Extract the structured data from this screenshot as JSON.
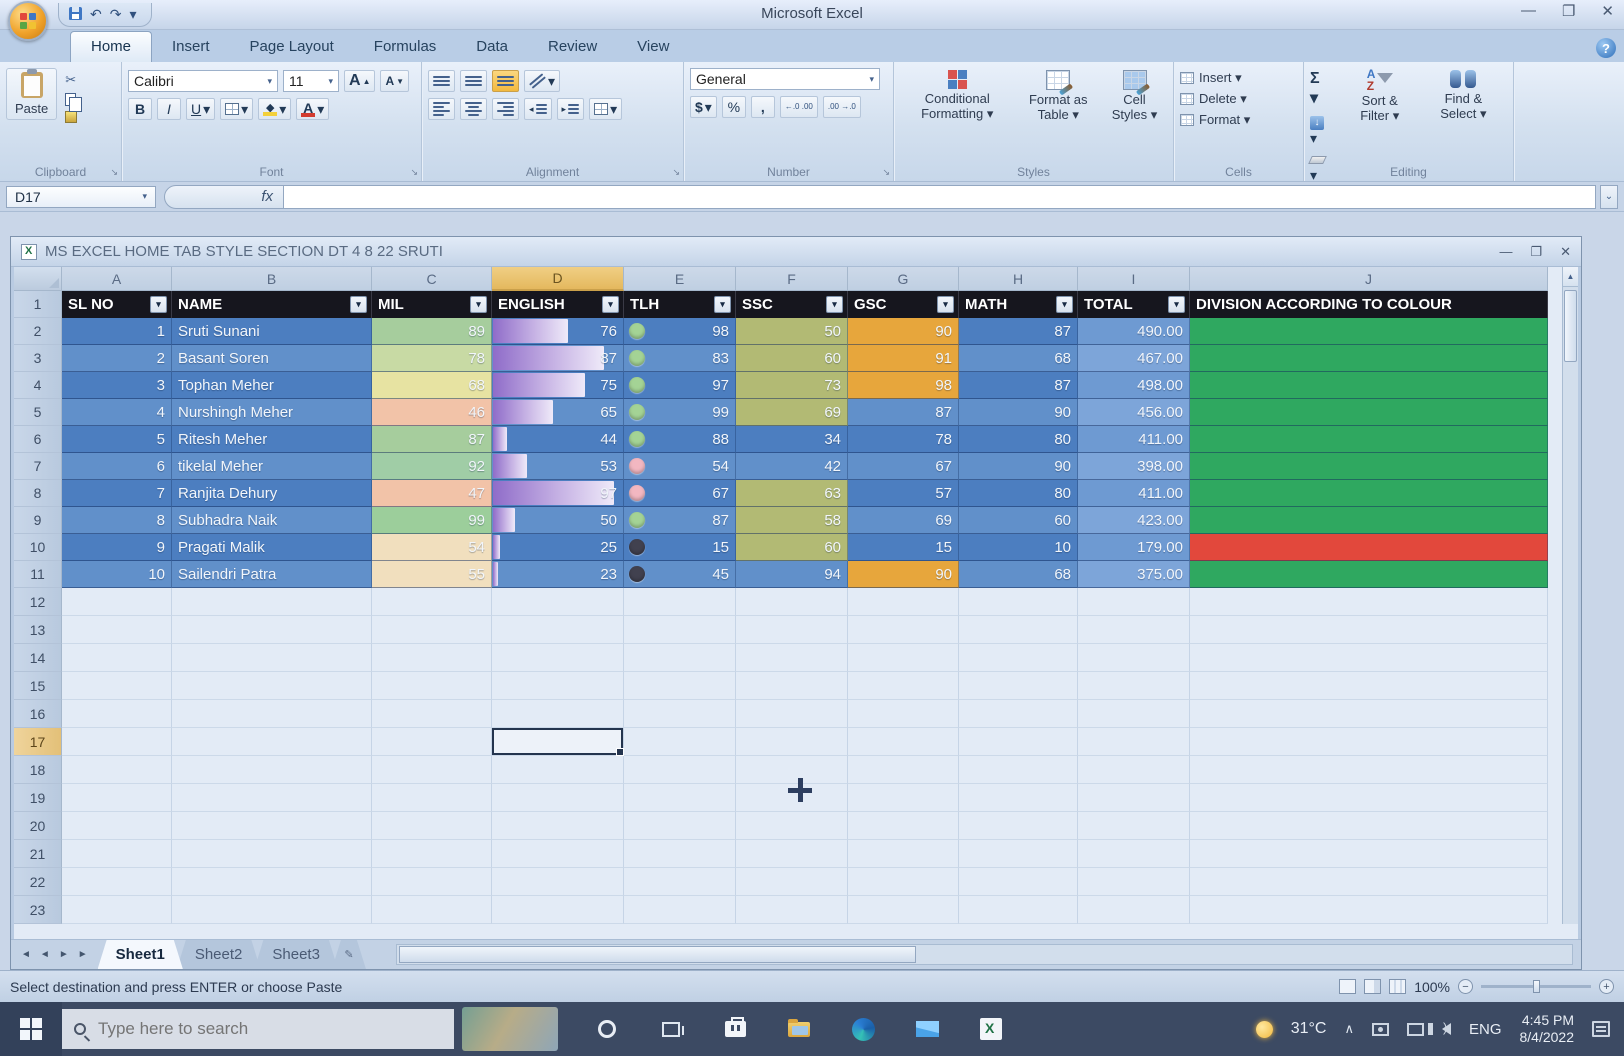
{
  "titlebar": {
    "app_title": "Microsoft Excel",
    "minimize": "—",
    "maximize": "❐",
    "close": "✕",
    "undo": "↶",
    "redo": "↷",
    "qat_more": "▾"
  },
  "ribbon_tabs": [
    {
      "label": "Home",
      "active": true
    },
    {
      "label": "Insert",
      "active": false
    },
    {
      "label": "Page Layout",
      "active": false
    },
    {
      "label": "Formulas",
      "active": false
    },
    {
      "label": "Data",
      "active": false
    },
    {
      "label": "Review",
      "active": false
    },
    {
      "label": "View",
      "active": false
    }
  ],
  "help_label": "?",
  "ribbon": {
    "clipboard": {
      "paste": "Paste",
      "group": "Clipboard",
      "cut_icon": "✂"
    },
    "font": {
      "name": "Calibri",
      "size": "11",
      "grow": "A",
      "shrink": "A",
      "bold": "B",
      "italic": "I",
      "underline": "U",
      "color_a": "A",
      "group": "Font"
    },
    "alignment": {
      "group": "Alignment"
    },
    "number": {
      "format": "General",
      "currency": "$",
      "percent": "%",
      "comma": ",",
      "inc_dec": "←.0 .00",
      "dec_dec": ".00 →.0",
      "group": "Number"
    },
    "styles": {
      "conditional": "Conditional Formatting ▾",
      "as_table": "Format as Table ▾",
      "cell_styles": "Cell Styles ▾",
      "group": "Styles"
    },
    "cells": {
      "insert": "Insert ▾",
      "delete": "Delete ▾",
      "format": "Format ▾",
      "group": "Cells"
    },
    "editing": {
      "autosum": "Σ ▾",
      "fill": "↓",
      "sort_filter": "Sort & Filter ▾",
      "find_select": "Find & Select ▾",
      "group": "Editing"
    }
  },
  "formula_bar": {
    "name_box": "D17",
    "fx_label": "fx",
    "content": ""
  },
  "workbook_title": "MS EXCEL HOME TAB STYLE SECTION DT 4 8 22 SRUTI",
  "grid": {
    "column_letters": [
      "A",
      "B",
      "C",
      "D",
      "E",
      "F",
      "G",
      "H",
      "I",
      "J"
    ],
    "selected_column": "D",
    "selected_cell": "D17",
    "selected_row_number": 17,
    "first_empty_row": 12,
    "last_row_number": 23,
    "headers": [
      "SL NO",
      "NAME",
      "MIL",
      "ENGLISH",
      "TLH",
      "SSC",
      "GSC",
      "MATH",
      "TOTAL",
      "DIVISION ACCORDING TO COLOUR"
    ],
    "filter_glyph": "▾",
    "icon_colors": {
      "green": "#a4d395",
      "pink": "#f2b7c1",
      "dark": "#41414f"
    },
    "rows": [
      {
        "sl": "1",
        "name": "Sruti Sunani",
        "mil": "89",
        "mil_fill": "#a6cd9d",
        "english": "76",
        "english_bar_pct": 57,
        "tlh": "98",
        "tlh_icon": "green",
        "ssc": "50",
        "ssc_fill": "#b2ba74",
        "gsc": "90",
        "gsc_fill": "#e7a63c",
        "math": "87",
        "total": "490.00",
        "division_fill": "#2fa860"
      },
      {
        "sl": "2",
        "name": "Basant Soren",
        "mil": "78",
        "mil_fill": "#c8daa4",
        "english": "87",
        "english_bar_pct": 85,
        "tlh": "83",
        "tlh_icon": "green",
        "ssc": "60",
        "ssc_fill": "#b2ba74",
        "gsc": "91",
        "gsc_fill": "#e7a63c",
        "math": "68",
        "total": "467.00",
        "division_fill": "#2fa860"
      },
      {
        "sl": "3",
        "name": "Tophan Meher",
        "mil": "68",
        "mil_fill": "#e7e3a2",
        "english": "75",
        "english_bar_pct": 70,
        "tlh": "97",
        "tlh_icon": "green",
        "ssc": "73",
        "ssc_fill": "#b2ba74",
        "gsc": "98",
        "gsc_fill": "#e7a63c",
        "math": "87",
        "total": "498.00",
        "division_fill": "#2fa860"
      },
      {
        "sl": "4",
        "name": "Nurshingh Meher",
        "mil": "46",
        "mil_fill": "#f2c3a8",
        "english": "65",
        "english_bar_pct": 46,
        "tlh": "99",
        "tlh_icon": "green",
        "ssc": "69",
        "ssc_fill": "#b2ba74",
        "gsc": "87",
        "gsc_fill": null,
        "math": "90",
        "total": "456.00",
        "division_fill": "#2fa860"
      },
      {
        "sl": "5",
        "name": "Ritesh Meher",
        "mil": "87",
        "mil_fill": "#a6cd9d",
        "english": "44",
        "english_bar_pct": 11,
        "tlh": "88",
        "tlh_icon": "green",
        "ssc": "34",
        "ssc_fill": null,
        "gsc": "78",
        "gsc_fill": null,
        "math": "80",
        "total": "411.00",
        "division_fill": "#2fa860"
      },
      {
        "sl": "6",
        "name": "tikelal Meher",
        "mil": "92",
        "mil_fill": "#a0cda6",
        "english": "53",
        "english_bar_pct": 26,
        "tlh": "54",
        "tlh_icon": "pink",
        "ssc": "42",
        "ssc_fill": null,
        "gsc": "67",
        "gsc_fill": null,
        "math": "90",
        "total": "398.00",
        "division_fill": "#2fa860"
      },
      {
        "sl": "7",
        "name": "Ranjita Dehury",
        "mil": "47",
        "mil_fill": "#f2c3a8",
        "english": "97",
        "english_bar_pct": 92,
        "tlh": "67",
        "tlh_icon": "pink",
        "ssc": "63",
        "ssc_fill": "#b2ba74",
        "gsc": "57",
        "gsc_fill": null,
        "math": "80",
        "total": "411.00",
        "division_fill": "#2fa860"
      },
      {
        "sl": "8",
        "name": "Subhadra Naik",
        "mil": "99",
        "mil_fill": "#9cce9b",
        "english": "50",
        "english_bar_pct": 17,
        "tlh": "87",
        "tlh_icon": "green",
        "ssc": "58",
        "ssc_fill": "#b2ba74",
        "gsc": "69",
        "gsc_fill": null,
        "math": "60",
        "total": "423.00",
        "division_fill": "#2fa860"
      },
      {
        "sl": "9",
        "name": "Pragati Malik",
        "mil": "54",
        "mil_fill": "#f1dfbe",
        "english": "25",
        "english_bar_pct": 5,
        "tlh": "15",
        "tlh_icon": "dark",
        "ssc": "60",
        "ssc_fill": "#b2ba74",
        "gsc": "15",
        "gsc_fill": null,
        "math": "10",
        "total": "179.00",
        "division_fill": "#e2483c"
      },
      {
        "sl": "10",
        "name": "Sailendri Patra",
        "mil": "55",
        "mil_fill": "#f1dfbe",
        "english": "23",
        "english_bar_pct": 4,
        "tlh": "45",
        "tlh_icon": "dark",
        "ssc": "94",
        "ssc_fill": null,
        "gsc": "90",
        "gsc_fill": "#e7a63c",
        "math": "68",
        "total": "375.00",
        "division_fill": "#2fa860"
      }
    ]
  },
  "sheet_tabs": {
    "nav": [
      "◄",
      "◄",
      "►",
      "►"
    ],
    "tabs": [
      {
        "label": "Sheet1",
        "active": true
      },
      {
        "label": "Sheet2",
        "active": false
      },
      {
        "label": "Sheet3",
        "active": false
      }
    ]
  },
  "status_bar": {
    "message": "Select destination and press ENTER or choose Paste",
    "zoom_level": "100%",
    "zoom_minus": "−",
    "zoom_plus": "+"
  },
  "taskbar": {
    "search_placeholder": "Type here to search",
    "temperature": "31°C",
    "tray_expand": "∧",
    "language": "ENG",
    "time": "4:45 PM",
    "date": "8/4/2022"
  }
}
